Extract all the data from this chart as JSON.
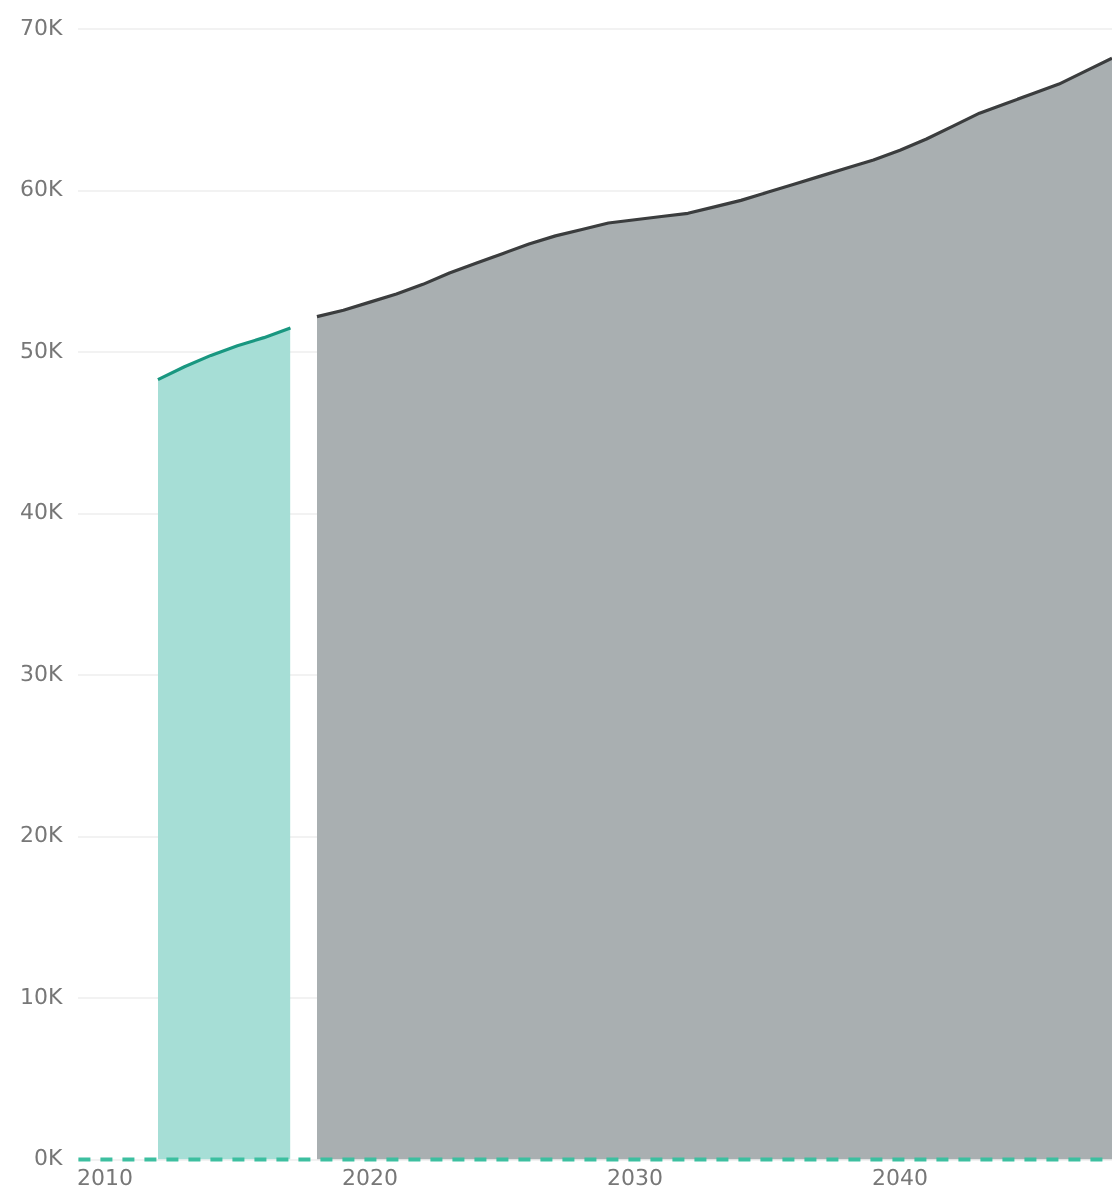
{
  "chart_data": {
    "type": "area",
    "x": [
      2012,
      2013,
      2014,
      2015,
      2016,
      2017
    ],
    "series": [
      {
        "color": "#a6ded6",
        "values": [
          48300,
          49100,
          49800,
          50400,
          50900,
          51500
        ]
      },
      {
        "color": "#a9afb1",
        "x": [
          2018,
          2019,
          2020,
          2021,
          2022,
          2023,
          2024,
          2025,
          2026,
          2027,
          2028,
          2029,
          2030,
          2031,
          2032,
          2033,
          2034,
          2035,
          2036,
          2037,
          2038,
          2039,
          2040,
          2041,
          2042,
          2043,
          2044,
          2045,
          2046,
          2047,
          2048
        ],
        "values": [
          52200,
          52600,
          53100,
          53600,
          54200,
          54900,
          55500,
          56100,
          56700,
          57200,
          57600,
          58000,
          58200,
          58400,
          58600,
          59000,
          59400,
          59900,
          60400,
          60900,
          61400,
          61900,
          62500,
          63200,
          64000,
          64800,
          65400,
          66000,
          66600,
          67400,
          68200
        ]
      }
    ],
    "xlim": [
      2009,
      2048
    ],
    "xticks": [
      2010,
      2020,
      2030,
      2040
    ],
    "ylim": [
      0,
      70000
    ],
    "yticks": [
      {
        "value": 0,
        "label": "0K"
      },
      {
        "value": 10000,
        "label": "10K"
      },
      {
        "value": 20000,
        "label": "20K"
      },
      {
        "value": 30000,
        "label": "30K"
      },
      {
        "value": 40000,
        "label": "40K"
      },
      {
        "value": 50000,
        "label": "50K"
      },
      {
        "value": 60000,
        "label": "60K"
      },
      {
        "value": 70000,
        "label": "70K"
      }
    ],
    "grid": "y",
    "ref_lines": [
      {
        "axis": "y",
        "value": 0,
        "color": "#3dbfa0",
        "line_style": "dashed"
      }
    ]
  }
}
